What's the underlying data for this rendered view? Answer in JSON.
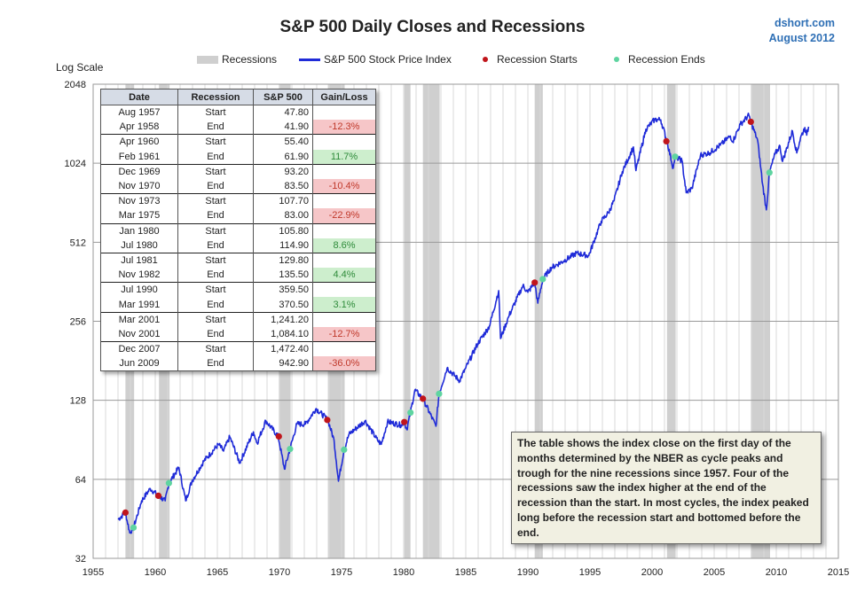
{
  "header": {
    "title": "S&P 500 Daily Closes and Recessions",
    "brand_line1": "dshort.com",
    "brand_line2": "August 2012"
  },
  "legend": {
    "recessions": "Recessions",
    "index": "S&P 500 Stock Price Index",
    "starts": "Recession Starts",
    "ends": "Recession Ends"
  },
  "colors": {
    "line": "#1f2bd8",
    "recession_band": "#cfcfcf",
    "start_dot": "#c0151b",
    "end_dot": "#5ed4a0",
    "grid": "#d9d9d9"
  },
  "table": {
    "headers": [
      "Date",
      "Recession",
      "S&P 500",
      "Gain/Loss"
    ],
    "rows": [
      {
        "date": "Aug 1957",
        "type": "Start",
        "value": "47.80",
        "change": ""
      },
      {
        "date": "Apr 1958",
        "type": "End",
        "value": "41.90",
        "change": "-12.3%"
      },
      {
        "date": "Apr 1960",
        "type": "Start",
        "value": "55.40",
        "change": ""
      },
      {
        "date": "Feb 1961",
        "type": "End",
        "value": "61.90",
        "change": "11.7%"
      },
      {
        "date": "Dec 1969",
        "type": "Start",
        "value": "93.20",
        "change": ""
      },
      {
        "date": "Nov 1970",
        "type": "End",
        "value": "83.50",
        "change": "-10.4%"
      },
      {
        "date": "Nov 1973",
        "type": "Start",
        "value": "107.70",
        "change": ""
      },
      {
        "date": "Mar 1975",
        "type": "End",
        "value": "83.00",
        "change": "-22.9%"
      },
      {
        "date": "Jan 1980",
        "type": "Start",
        "value": "105.80",
        "change": ""
      },
      {
        "date": "Jul 1980",
        "type": "End",
        "value": "114.90",
        "change": "8.6%"
      },
      {
        "date": "Jul 1981",
        "type": "Start",
        "value": "129.80",
        "change": ""
      },
      {
        "date": "Nov 1982",
        "type": "End",
        "value": "135.50",
        "change": "4.4%"
      },
      {
        "date": "Jul 1990",
        "type": "Start",
        "value": "359.50",
        "change": ""
      },
      {
        "date": "Mar 1991",
        "type": "End",
        "value": "370.50",
        "change": "3.1%"
      },
      {
        "date": "Mar 2001",
        "type": "Start",
        "value": "1,241.20",
        "change": ""
      },
      {
        "date": "Nov 2001",
        "type": "End",
        "value": "1,084.10",
        "change": "-12.7%"
      },
      {
        "date": "Dec 2007",
        "type": "Start",
        "value": "1,472.40",
        "change": ""
      },
      {
        "date": "Jun 2009",
        "type": "End",
        "value": "942.90",
        "change": "-36.0%"
      }
    ]
  },
  "note": "The table shows the index close on the first day of the months determined by the NBER as cycle peaks and trough for the nine recessions since 1957. Four of the recessions saw the index higher at the end of the recession than the start. In most cycles, the index peaked long before the recession start and bottomed before the end.",
  "chart_data": {
    "type": "line",
    "title": "S&P 500 Daily Closes and Recessions",
    "ylabel": "Log Scale",
    "xlabel": "",
    "y_scale": "log2",
    "ylim": [
      32,
      2048
    ],
    "xlim": [
      1955,
      2015
    ],
    "x_ticks": [
      "1955",
      "1960",
      "1965",
      "1970",
      "1975",
      "1980",
      "1985",
      "1990",
      "1995",
      "2000",
      "2005",
      "2010",
      "2015"
    ],
    "y_ticks": [
      "32",
      "64",
      "128",
      "256",
      "512",
      "1024",
      "2048"
    ],
    "grid": true,
    "legend_position": "top",
    "series": [
      {
        "name": "S&P 500 Stock Price Index",
        "points": [
          [
            1957.0,
            45
          ],
          [
            1957.6,
            47.8
          ],
          [
            1957.95,
            40
          ],
          [
            1958.25,
            41.9
          ],
          [
            1958.9,
            53
          ],
          [
            1959.6,
            59
          ],
          [
            1960.25,
            55.4
          ],
          [
            1960.8,
            53
          ],
          [
            1961.1,
            61.9
          ],
          [
            1961.9,
            71
          ],
          [
            1962.45,
            53
          ],
          [
            1962.95,
            63
          ],
          [
            1963.9,
            75
          ],
          [
            1965.1,
            87
          ],
          [
            1965.5,
            82
          ],
          [
            1966.0,
            93
          ],
          [
            1966.8,
            74
          ],
          [
            1967.9,
            97
          ],
          [
            1968.2,
            88
          ],
          [
            1968.9,
            107
          ],
          [
            1969.9,
            93.2
          ],
          [
            1970.4,
            70
          ],
          [
            1970.85,
            83.5
          ],
          [
            1971.4,
            104
          ],
          [
            1972.1,
            104
          ],
          [
            1972.95,
            119
          ],
          [
            1973.9,
            107.7
          ],
          [
            1974.4,
            90
          ],
          [
            1974.75,
            63
          ],
          [
            1975.2,
            83
          ],
          [
            1975.6,
            95
          ],
          [
            1976.9,
            107
          ],
          [
            1977.9,
            90
          ],
          [
            1978.2,
            87
          ],
          [
            1978.7,
            106
          ],
          [
            1979.8,
            103
          ],
          [
            1980.05,
            105.8
          ],
          [
            1980.25,
            99
          ],
          [
            1980.55,
            114.9
          ],
          [
            1980.9,
            140
          ],
          [
            1981.55,
            129.8
          ],
          [
            1982.6,
            102
          ],
          [
            1982.85,
            135.5
          ],
          [
            1983.5,
            170
          ],
          [
            1984.5,
            152
          ],
          [
            1985.0,
            170
          ],
          [
            1985.95,
            210
          ],
          [
            1986.9,
            245
          ],
          [
            1987.65,
            335
          ],
          [
            1987.8,
            220
          ],
          [
            1988.5,
            270
          ],
          [
            1989.6,
            350
          ],
          [
            1990.0,
            330
          ],
          [
            1990.55,
            359.5
          ],
          [
            1990.8,
            300
          ],
          [
            1991.2,
            370.5
          ],
          [
            1991.9,
            410
          ],
          [
            1992.9,
            435
          ],
          [
            1993.9,
            465
          ],
          [
            1994.9,
            455
          ],
          [
            1995.9,
            615
          ],
          [
            1996.5,
            665
          ],
          [
            1996.95,
            740
          ],
          [
            1997.6,
            950
          ],
          [
            1998.5,
            1180
          ],
          [
            1998.7,
            960
          ],
          [
            1999.5,
            1380
          ],
          [
            2000.2,
            1500
          ],
          [
            2000.7,
            1500
          ],
          [
            2001.2,
            1241.2
          ],
          [
            2001.7,
            980
          ],
          [
            2001.85,
            1084.1
          ],
          [
            2002.4,
            1050
          ],
          [
            2002.75,
            790
          ],
          [
            2003.2,
            820
          ],
          [
            2003.9,
            1100
          ],
          [
            2004.6,
            1120
          ],
          [
            2005.5,
            1200
          ],
          [
            2006.3,
            1300
          ],
          [
            2006.5,
            1240
          ],
          [
            2007.1,
            1440
          ],
          [
            2007.8,
            1560
          ],
          [
            2007.95,
            1472.4
          ],
          [
            2008.5,
            1250
          ],
          [
            2008.9,
            850
          ],
          [
            2009.2,
            680
          ],
          [
            2009.45,
            942.9
          ],
          [
            2009.9,
            1110
          ],
          [
            2010.3,
            1190
          ],
          [
            2010.5,
            1040
          ],
          [
            2011.3,
            1360
          ],
          [
            2011.65,
            1120
          ],
          [
            2011.95,
            1280
          ],
          [
            2012.3,
            1400
          ],
          [
            2012.45,
            1310
          ],
          [
            2012.6,
            1410
          ]
        ]
      }
    ],
    "recessions": [
      [
        1957.6,
        1958.3
      ],
      [
        1960.3,
        1961.15
      ],
      [
        1969.95,
        1970.9
      ],
      [
        1973.9,
        1975.25
      ],
      [
        1980.05,
        1980.55
      ],
      [
        1981.55,
        1982.9
      ],
      [
        1990.55,
        1991.2
      ],
      [
        2001.2,
        2001.9
      ],
      [
        2007.95,
        2009.5
      ]
    ],
    "recession_starts": [
      [
        1957.6,
        47.8
      ],
      [
        1960.25,
        55.4
      ],
      [
        1969.95,
        93.2
      ],
      [
        1973.85,
        107.7
      ],
      [
        1980.05,
        105.8
      ],
      [
        1981.55,
        129.8
      ],
      [
        1990.55,
        359.5
      ],
      [
        2001.15,
        1241.2
      ],
      [
        2007.95,
        1472.4
      ]
    ],
    "recession_ends": [
      [
        1958.25,
        41.9
      ],
      [
        1961.1,
        61.9
      ],
      [
        1970.85,
        83.5
      ],
      [
        1975.2,
        83.0
      ],
      [
        1980.55,
        114.9
      ],
      [
        1982.85,
        135.5
      ],
      [
        1991.2,
        370.5
      ],
      [
        2001.85,
        1084.1
      ],
      [
        2009.45,
        942.9
      ]
    ]
  }
}
